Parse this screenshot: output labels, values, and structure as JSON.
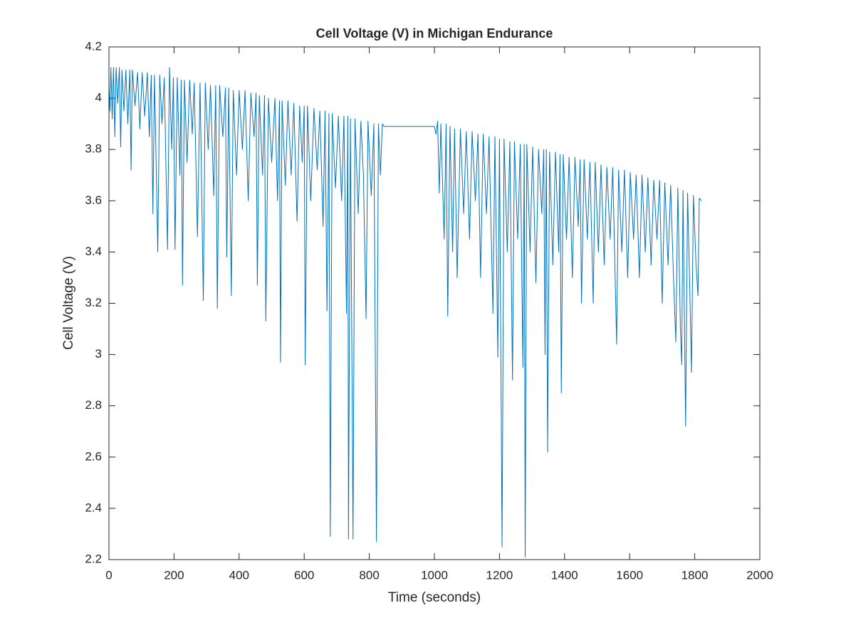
{
  "chart_data": {
    "type": "line",
    "title": "Cell Voltage (V) in Michigan Endurance",
    "x_label": "Time (seconds)",
    "y_label": "Cell Voltage (V)",
    "xlim": [
      0,
      2000
    ],
    "xticks": [
      0,
      200,
      400,
      600,
      800,
      1000,
      1200,
      1400,
      1600,
      1800,
      2000
    ],
    "ylim": [
      2.2,
      4.2
    ],
    "yticks": [
      2.2,
      2.4,
      2.6,
      2.8,
      3,
      3.2,
      3.4,
      3.6,
      3.8,
      4,
      4.2
    ],
    "grid": false,
    "box": true,
    "x": [
      0,
      3,
      6,
      10,
      14,
      18,
      22,
      27,
      32,
      36,
      40,
      46,
      52,
      58,
      64,
      68,
      72,
      80,
      88,
      95,
      102,
      110,
      118,
      124,
      130,
      135,
      140,
      150,
      156,
      163,
      170,
      180,
      186,
      193,
      198,
      203,
      210,
      218,
      222,
      226,
      232,
      240,
      248,
      256,
      262,
      272,
      280,
      290,
      296,
      305,
      312,
      322,
      328,
      333,
      340,
      350,
      358,
      362,
      368,
      376,
      382,
      392,
      400,
      410,
      418,
      428,
      436,
      446,
      452,
      456,
      462,
      472,
      478,
      482,
      490,
      500,
      510,
      518,
      524,
      527,
      532,
      542,
      550,
      560,
      568,
      578,
      586,
      594,
      600,
      603,
      610,
      620,
      630,
      640,
      648,
      658,
      664,
      670,
      676,
      680,
      686,
      696,
      705,
      715,
      722,
      730,
      734,
      736,
      742,
      750,
      756,
      766,
      774,
      782,
      790,
      796,
      806,
      814,
      822,
      828,
      834,
      840,
      845,
      1000,
      1005,
      1010,
      1015,
      1020,
      1030,
      1036,
      1041,
      1048,
      1056,
      1062,
      1070,
      1080,
      1090,
      1098,
      1108,
      1116,
      1126,
      1134,
      1142,
      1150,
      1160,
      1168,
      1180,
      1186,
      1195,
      1200,
      1208,
      1214,
      1224,
      1232,
      1240,
      1246,
      1256,
      1264,
      1272,
      1276,
      1279,
      1284,
      1294,
      1302,
      1312,
      1320,
      1330,
      1336,
      1340,
      1344,
      1348,
      1354,
      1364,
      1372,
      1382,
      1386,
      1390,
      1396,
      1406,
      1414,
      1424,
      1432,
      1442,
      1448,
      1452,
      1460,
      1470,
      1478,
      1488,
      1494,
      1504,
      1512,
      1522,
      1530,
      1540,
      1548,
      1560,
      1566,
      1576,
      1584,
      1594,
      1602,
      1612,
      1620,
      1630,
      1638,
      1648,
      1656,
      1666,
      1674,
      1684,
      1692,
      1700,
      1708,
      1718,
      1726,
      1736,
      1742,
      1748,
      1756,
      1760,
      1764,
      1772,
      1778,
      1784,
      1790,
      1796,
      1804,
      1810,
      1814,
      1820
    ],
    "series": [
      {
        "name": "Cell Voltage",
        "color": "#0072bd",
        "values": [
          4.05,
          3.95,
          4.12,
          3.92,
          4.12,
          3.85,
          4.12,
          3.98,
          4.12,
          3.81,
          4.11,
          3.95,
          4.11,
          3.9,
          4.11,
          3.72,
          4.11,
          3.97,
          4.1,
          3.88,
          4.1,
          3.93,
          4.1,
          3.85,
          4.09,
          3.55,
          4.09,
          3.4,
          4.09,
          3.9,
          4.08,
          3.41,
          4.12,
          3.8,
          4.08,
          3.41,
          4.08,
          3.7,
          4.07,
          3.27,
          4.07,
          3.75,
          4.07,
          3.86,
          4.06,
          3.46,
          4.06,
          3.21,
          4.06,
          3.8,
          4.05,
          3.62,
          4.05,
          3.18,
          4.05,
          3.85,
          4.04,
          3.38,
          4.04,
          3.23,
          4.03,
          3.7,
          4.03,
          3.8,
          4.03,
          3.6,
          4.02,
          3.85,
          4.02,
          3.27,
          4.01,
          3.7,
          4.01,
          3.13,
          4,
          3.75,
          4,
          3.6,
          3.99,
          2.97,
          3.99,
          3.66,
          3.99,
          3.7,
          3.98,
          3.52,
          3.97,
          3.75,
          3.97,
          2.96,
          3.97,
          3.6,
          3.96,
          3.72,
          3.95,
          3.5,
          3.95,
          3.17,
          3.94,
          2.29,
          3.94,
          3.65,
          3.93,
          3.6,
          3.93,
          3.16,
          3.93,
          2.28,
          3.92,
          2.28,
          3.92,
          3.55,
          3.91,
          3.7,
          3.14,
          3.91,
          3.62,
          3.9,
          2.27,
          3.9,
          3.7,
          3.9,
          3.89,
          3.89,
          3.86,
          3.91,
          3.63,
          3.9,
          3.45,
          3.9,
          3.15,
          3.89,
          3.4,
          3.88,
          3.3,
          3.88,
          3.55,
          3.87,
          3.45,
          3.87,
          3.6,
          3.86,
          3.3,
          3.86,
          3.55,
          3.85,
          3.16,
          3.85,
          2.99,
          3.84,
          2.25,
          3.84,
          3.4,
          3.83,
          2.9,
          3.83,
          3.45,
          3.82,
          2.95,
          3.82,
          2.21,
          3.82,
          3.4,
          3.81,
          3.28,
          3.8,
          3.55,
          3.8,
          3,
          3.8,
          2.62,
          3.79,
          3.35,
          3.79,
          3.4,
          3.78,
          2.85,
          3.78,
          3.45,
          3.77,
          3.3,
          3.77,
          3.5,
          3.76,
          3.2,
          3.76,
          3.45,
          3.75,
          3.2,
          3.75,
          3.4,
          3.74,
          3.35,
          3.73,
          3.45,
          3.73,
          3.04,
          3.72,
          3.4,
          3.72,
          3.3,
          3.71,
          3.45,
          3.7,
          3.3,
          3.7,
          3.4,
          3.69,
          3.35,
          3.68,
          3.45,
          3.68,
          3.2,
          3.67,
          3.35,
          3.66,
          3.25,
          3.05,
          3.65,
          3.1,
          2.96,
          3.64,
          2.72,
          3.63,
          3.3,
          2.93,
          3.62,
          3.35,
          3.23,
          3.61,
          3.6
        ]
      }
    ]
  }
}
